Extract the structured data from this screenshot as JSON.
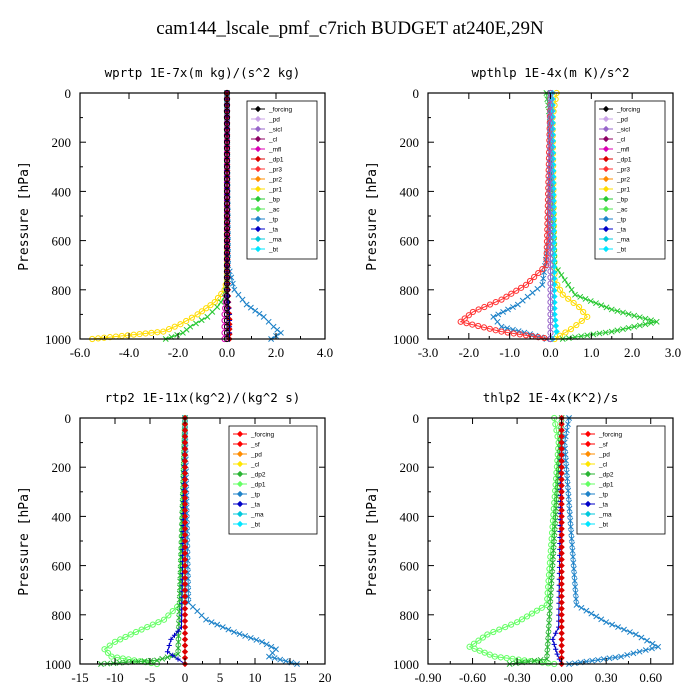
{
  "title": "cam144_lscale_pmf_c7rich  BUDGET at240E,29N",
  "colors": {
    "forcing": "#000000",
    "pd": "#c8a0e6",
    "sicl": "#9664c8",
    "cl": "#8c0064",
    "mfl": "#dc00b4",
    "dp1": "#dc0000",
    "pr3": "#ff3232",
    "pr2": "#ff8c00",
    "pr1": "#ffdc00",
    "bp": "#28c832",
    "ac": "#50e650",
    "tp": "#1e82c8",
    "ta": "#0000c8",
    "ma": "#00c8dc",
    "bt": "#00e6ff",
    "forcing_red": "#ff0000",
    "sf": "#ff0000",
    "pd_orange": "#ff8c00",
    "cl_yellow": "#ffe600",
    "dp2": "#28b432",
    "dp1_green": "#64ff64",
    "main_trunk": "#8b0000"
  },
  "chart_data": [
    {
      "type": "line",
      "title": "wprtp   1E-7x(m kg)/(s^2 kg)",
      "ylabel": "Pressure [hPa]",
      "xlim": [
        -6,
        4
      ],
      "ylim": [
        1000,
        0
      ],
      "xticks": [
        "-6.0",
        "-4.0",
        "-2.0",
        "0.0",
        "2.0",
        "4.0"
      ],
      "xtick_values": [
        -6,
        -4,
        -2,
        0,
        2,
        4
      ],
      "yticks": [
        "0",
        "200",
        "400",
        "600",
        "800",
        "1000"
      ],
      "ytick_values": [
        0,
        200,
        400,
        600,
        800,
        1000
      ],
      "legend": [
        "_forcing",
        "_pd",
        "_sicl",
        "_cl",
        "_mfl",
        "_dp1",
        "_pr3",
        "_pr2",
        "_pr1",
        "_bp",
        "_ac",
        "_tp",
        "_ta",
        "_ma",
        "_bt"
      ],
      "legend_position": "top-right",
      "series": [
        {
          "name": "_pr1",
          "color": "#ffdc00",
          "marker": "circle",
          "x": [
            0,
            0,
            -0.1,
            -0.5,
            -1.2,
            -1.9,
            -2.6,
            -5.5
          ],
          "y": [
            0,
            760,
            800,
            850,
            900,
            940,
            970,
            1000
          ]
        },
        {
          "name": "_ac",
          "color": "#28c832",
          "marker": "x",
          "x": [
            0,
            0,
            -0.1,
            -0.4,
            -0.8,
            -1.5,
            -1.8,
            -2.5
          ],
          "y": [
            0,
            780,
            830,
            870,
            910,
            950,
            975,
            1000
          ]
        },
        {
          "name": "_tp",
          "color": "#1e82c8",
          "marker": "x",
          "x": [
            0,
            0.05,
            0.3,
            0.8,
            1.5,
            1.9,
            2.2,
            1.8
          ],
          "y": [
            0,
            700,
            800,
            860,
            910,
            950,
            975,
            1000
          ]
        },
        {
          "name": "_dp1",
          "color": "#dc0000",
          "marker": "diamond",
          "x": [
            0,
            0.02,
            0.05,
            0.1,
            0.1,
            0.1
          ],
          "y": [
            0,
            700,
            850,
            920,
            960,
            1000
          ]
        },
        {
          "name": "_mfl",
          "color": "#dc00b4",
          "marker": "circle",
          "x": [
            0,
            0,
            -0.1,
            -0.1
          ],
          "y": [
            0,
            800,
            900,
            1000
          ]
        },
        {
          "name": "_ta",
          "color": "#0000c8",
          "marker": "plus",
          "x": [
            0,
            0,
            0.1,
            0.1
          ],
          "y": [
            0,
            800,
            900,
            1000
          ]
        },
        {
          "name": "_forcing",
          "color": "#000000",
          "marker": "circle",
          "x": [
            0,
            0,
            0,
            0,
            0,
            0,
            0,
            0,
            0,
            0,
            0,
            0,
            0,
            0,
            0,
            0,
            0,
            0,
            0,
            0,
            0,
            0,
            0,
            0,
            0,
            0,
            0,
            0,
            0,
            0,
            0,
            0,
            0,
            0,
            0,
            0,
            0,
            0,
            0,
            0,
            0
          ],
          "y": [
            0,
            25,
            50,
            75,
            100,
            125,
            150,
            175,
            200,
            225,
            250,
            275,
            300,
            325,
            350,
            375,
            400,
            425,
            450,
            475,
            500,
            525,
            550,
            575,
            600,
            625,
            650,
            675,
            700,
            725,
            750,
            775,
            800,
            825,
            850,
            875,
            900,
            925,
            950,
            975,
            1000
          ]
        }
      ]
    },
    {
      "type": "line",
      "title": "wpthlp   1E-4x(m K)/s^2",
      "ylabel": "Pressure [hPa]",
      "xlim": [
        -3,
        3
      ],
      "ylim": [
        1000,
        0
      ],
      "xticks": [
        "-3.0",
        "-2.0",
        "-1.0",
        "0.0",
        "1.0",
        "2.0",
        "3.0"
      ],
      "xtick_values": [
        -3,
        -2,
        -1,
        0,
        1,
        2,
        3
      ],
      "yticks": [
        "0",
        "200",
        "400",
        "600",
        "800",
        "1000"
      ],
      "ytick_values": [
        0,
        200,
        400,
        600,
        800,
        1000
      ],
      "legend": [
        "_forcing",
        "_pd",
        "_sicl",
        "_cl",
        "_mfl",
        "_dp1",
        "_pr3",
        "_pr2",
        "_pr1",
        "_bp",
        "_ac",
        "_tp",
        "_ta",
        "_ma",
        "_bt"
      ],
      "legend_position": "top-right",
      "series": [
        {
          "name": "_pr1",
          "color": "#ffdc00",
          "marker": "circle",
          "x": [
            0.15,
            0.05,
            0.1,
            0.3,
            0.7,
            0.9,
            0.5,
            0.1
          ],
          "y": [
            0,
            100,
            760,
            820,
            870,
            910,
            960,
            1000
          ]
        },
        {
          "name": "_ac",
          "color": "#28c832",
          "marker": "x",
          "x": [
            -0.1,
            -0.02,
            0.1,
            0.6,
            1.5,
            2.6,
            1.5,
            0.3
          ],
          "y": [
            0,
            100,
            700,
            820,
            880,
            930,
            970,
            1000
          ]
        },
        {
          "name": "_tp",
          "color": "#1e82c8",
          "marker": "x",
          "x": [
            0,
            -0.05,
            -0.2,
            -0.8,
            -1.4,
            -1.2,
            -0.5,
            -0.1
          ],
          "y": [
            0,
            600,
            780,
            860,
            910,
            950,
            980,
            1000
          ]
        },
        {
          "name": "_pr3",
          "color": "#ff3232",
          "marker": "circle",
          "x": [
            0,
            -0.1,
            -0.6,
            -1.2,
            -1.9,
            -2.2,
            -1.2,
            0
          ],
          "y": [
            0,
            700,
            780,
            840,
            890,
            930,
            970,
            1000
          ]
        },
        {
          "name": "_bt",
          "color": "#00e6ff",
          "marker": "diamond",
          "x": [
            0.05,
            0.1,
            0.15,
            0.05
          ],
          "y": [
            0,
            900,
            970,
            1000
          ]
        },
        {
          "name": "_forcing",
          "color": "#9664c8",
          "marker": "circle",
          "x": [
            0,
            0,
            0,
            0,
            0,
            0,
            0,
            0,
            0,
            0,
            0,
            0,
            0,
            0,
            0,
            0,
            0,
            0,
            0,
            0,
            0,
            0,
            0,
            0,
            0,
            0,
            0,
            0,
            0,
            0,
            0,
            0,
            0,
            0,
            0,
            0,
            0,
            0,
            0,
            0,
            0
          ],
          "y": [
            0,
            25,
            50,
            75,
            100,
            125,
            150,
            175,
            200,
            225,
            250,
            275,
            300,
            325,
            350,
            375,
            400,
            425,
            450,
            475,
            500,
            525,
            550,
            575,
            600,
            625,
            650,
            675,
            700,
            725,
            750,
            775,
            800,
            825,
            850,
            875,
            900,
            925,
            950,
            975,
            1000
          ]
        }
      ]
    },
    {
      "type": "line",
      "title": "rtp2   1E-11x(kg^2)/(kg^2 s)",
      "ylabel": "Pressure [hPa]",
      "xlim": [
        -15,
        20
      ],
      "ylim": [
        1000,
        0
      ],
      "xticks": [
        "-15",
        "-10",
        "-5",
        "0",
        "5",
        "10",
        "15",
        "20"
      ],
      "xtick_values": [
        -15,
        -10,
        -5,
        0,
        5,
        10,
        15,
        20
      ],
      "yticks": [
        "0",
        "200",
        "400",
        "600",
        "800",
        "1000"
      ],
      "ytick_values": [
        0,
        200,
        400,
        600,
        800,
        1000
      ],
      "legend": [
        "_forcing",
        "_sf",
        "_pd",
        "_cl",
        "_dp2",
        "_dp1",
        "_tp",
        "_ta",
        "_ma",
        "_bt"
      ],
      "legend_position": "top-right",
      "series": [
        {
          "name": "_dp1",
          "color": "#64ff64",
          "marker": "circle",
          "x": [
            0,
            -0.5,
            -3,
            -7,
            -10,
            -11.5,
            -10.5,
            -4
          ],
          "y": [
            0,
            750,
            820,
            870,
            910,
            940,
            970,
            1000
          ]
        },
        {
          "name": "_dp2",
          "color": "#28b432",
          "marker": "x",
          "x": [
            0,
            -1,
            -4,
            -12
          ],
          "y": [
            0,
            960,
            985,
            1000
          ]
        },
        {
          "name": "_tp",
          "color": "#1e82c8",
          "marker": "x",
          "x": [
            0,
            0.5,
            3,
            7,
            11,
            13,
            12,
            16
          ],
          "y": [
            0,
            750,
            820,
            870,
            910,
            940,
            970,
            1000
          ]
        },
        {
          "name": "_ta",
          "color": "#0000c8",
          "marker": "plus",
          "x": [
            0,
            -0.5,
            -2,
            -2.5,
            -1,
            0
          ],
          "y": [
            0,
            850,
            900,
            950,
            980,
            1000
          ]
        },
        {
          "name": "_forcing",
          "color": "#dc0000",
          "marker": "diamond",
          "x": [
            0,
            0,
            0,
            0,
            0,
            0,
            0,
            0,
            0,
            0,
            0,
            0,
            0,
            0,
            0,
            0,
            0,
            0,
            0,
            0,
            0,
            0,
            0,
            0,
            0,
            0,
            0,
            0,
            0,
            0,
            0,
            0,
            0,
            0,
            0,
            0,
            0,
            0,
            0,
            0,
            0
          ],
          "y": [
            0,
            25,
            50,
            75,
            100,
            125,
            150,
            175,
            200,
            225,
            250,
            275,
            300,
            325,
            350,
            375,
            400,
            425,
            450,
            475,
            500,
            525,
            550,
            575,
            600,
            625,
            650,
            675,
            700,
            725,
            750,
            775,
            800,
            825,
            850,
            875,
            900,
            925,
            950,
            975,
            1000
          ]
        }
      ]
    },
    {
      "type": "line",
      "title": "thlp2   1E-4x(K^2)/s",
      "ylabel": "Pressure [hPa]",
      "xlim": [
        -0.9,
        0.75
      ],
      "ylim": [
        1000,
        0
      ],
      "xticks": [
        "-0.90",
        "-0.60",
        "-0.30",
        "0.00",
        "0.30",
        "0.60"
      ],
      "xtick_values": [
        -0.9,
        -0.6,
        -0.3,
        0,
        0.3,
        0.6
      ],
      "yticks": [
        "0",
        "200",
        "400",
        "600",
        "800",
        "1000"
      ],
      "ytick_values": [
        0,
        200,
        400,
        600,
        800,
        1000
      ],
      "legend": [
        "_forcing",
        "_sf",
        "_pd",
        "_cl",
        "_dp2",
        "_dp1",
        "_tp",
        "_ta",
        "_ma",
        "_bt"
      ],
      "legend_position": "top-right",
      "series": [
        {
          "name": "_dp1",
          "color": "#64ff64",
          "marker": "circle",
          "x": [
            -0.05,
            -0.02,
            -0.1,
            -0.3,
            -0.5,
            -0.62,
            -0.45,
            -0.05
          ],
          "y": [
            0,
            100,
            760,
            830,
            880,
            930,
            970,
            1000
          ]
        },
        {
          "name": "_dp2",
          "color": "#28b432",
          "marker": "x",
          "x": [
            0,
            -0.1,
            -0.35
          ],
          "y": [
            0,
            980,
            1000
          ]
        },
        {
          "name": "_tp",
          "color": "#1e82c8",
          "marker": "x",
          "x": [
            0.05,
            0.02,
            0.1,
            0.3,
            0.5,
            0.65,
            0.4,
            0.05
          ],
          "y": [
            0,
            100,
            760,
            830,
            880,
            930,
            970,
            1000
          ]
        },
        {
          "name": "_ta",
          "color": "#0000c8",
          "marker": "plus",
          "x": [
            0,
            -0.02,
            -0.06,
            -0.03,
            0
          ],
          "y": [
            0,
            850,
            900,
            960,
            1000
          ]
        },
        {
          "name": "_forcing",
          "color": "#dc0000",
          "marker": "diamond",
          "x": [
            0,
            0,
            0,
            0,
            0,
            0,
            0,
            0,
            0,
            0,
            0,
            0,
            0,
            0,
            0,
            0,
            0,
            0,
            0,
            0,
            0,
            0,
            0,
            0,
            0,
            0,
            0,
            0,
            0,
            0,
            0,
            0,
            0,
            0,
            0,
            0,
            0,
            0,
            0,
            0,
            0
          ],
          "y": [
            0,
            25,
            50,
            75,
            100,
            125,
            150,
            175,
            200,
            225,
            250,
            275,
            300,
            325,
            350,
            375,
            400,
            425,
            450,
            475,
            500,
            525,
            550,
            575,
            600,
            625,
            650,
            675,
            700,
            725,
            750,
            775,
            800,
            825,
            850,
            875,
            900,
            925,
            950,
            975,
            1000
          ]
        }
      ]
    }
  ]
}
